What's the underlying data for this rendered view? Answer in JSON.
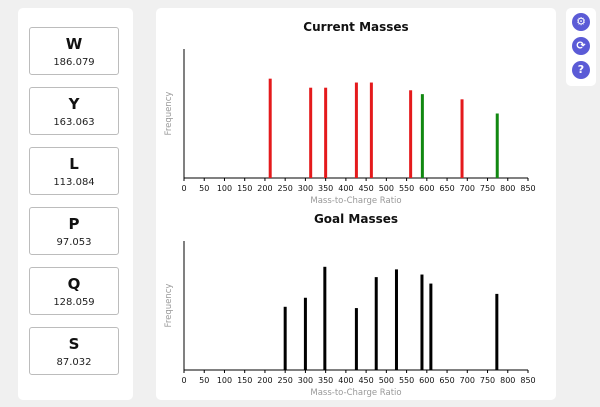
{
  "amino_acids": [
    {
      "letter": "W",
      "mass": "186.079"
    },
    {
      "letter": "Y",
      "mass": "163.063"
    },
    {
      "letter": "L",
      "mass": "113.084"
    },
    {
      "letter": "P",
      "mass": "97.053"
    },
    {
      "letter": "Q",
      "mass": "128.059"
    },
    {
      "letter": "S",
      "mass": "87.032"
    }
  ],
  "tools": {
    "settings_icon": "gear-icon",
    "refresh_icon": "refresh-icon",
    "help_icon": "help-icon",
    "settings_glyph": "⚙",
    "refresh_glyph": "⟳",
    "help_glyph": "?",
    "accent_color": "#5b5bd6"
  },
  "chart_data": [
    {
      "type": "bar",
      "title": "Current Masses",
      "xlabel": "Mass-to-Charge Ratio",
      "ylabel": "Frequency",
      "xlim": [
        0,
        850
      ],
      "ylim": [
        0,
        1
      ],
      "xticks": [
        "0",
        "50",
        "100",
        "150",
        "200",
        "250",
        "300",
        "350",
        "400",
        "450",
        "500",
        "550",
        "600",
        "650",
        "700",
        "750",
        "800",
        "850"
      ],
      "grid": false,
      "peaks": [
        {
          "x": 213,
          "y": 0.77,
          "color": "#e41a1c"
        },
        {
          "x": 313,
          "y": 0.7,
          "color": "#e41a1c"
        },
        {
          "x": 350,
          "y": 0.7,
          "color": "#e41a1c"
        },
        {
          "x": 426,
          "y": 0.74,
          "color": "#e41a1c"
        },
        {
          "x": 463,
          "y": 0.74,
          "color": "#e41a1c"
        },
        {
          "x": 560,
          "y": 0.68,
          "color": "#e41a1c"
        },
        {
          "x": 589,
          "y": 0.65,
          "color": "#118811"
        },
        {
          "x": 687,
          "y": 0.61,
          "color": "#e41a1c"
        },
        {
          "x": 774,
          "y": 0.5,
          "color": "#118811"
        }
      ]
    },
    {
      "type": "bar",
      "title": "Goal Masses",
      "xlabel": "Mass-to-Charge Ratio",
      "ylabel": "Frequency",
      "xlim": [
        0,
        850
      ],
      "ylim": [
        0,
        1
      ],
      "xticks": [
        "0",
        "50",
        "100",
        "150",
        "200",
        "250",
        "300",
        "350",
        "400",
        "450",
        "500",
        "550",
        "600",
        "650",
        "700",
        "750",
        "800",
        "850"
      ],
      "grid": false,
      "peaks": [
        {
          "x": 250,
          "y": 0.49,
          "color": "#000000"
        },
        {
          "x": 300,
          "y": 0.56,
          "color": "#000000"
        },
        {
          "x": 348,
          "y": 0.8,
          "color": "#000000"
        },
        {
          "x": 426,
          "y": 0.48,
          "color": "#000000"
        },
        {
          "x": 475,
          "y": 0.72,
          "color": "#000000"
        },
        {
          "x": 525,
          "y": 0.78,
          "color": "#000000"
        },
        {
          "x": 588,
          "y": 0.74,
          "color": "#000000"
        },
        {
          "x": 610,
          "y": 0.67,
          "color": "#000000"
        },
        {
          "x": 773,
          "y": 0.59,
          "color": "#000000"
        }
      ]
    }
  ]
}
